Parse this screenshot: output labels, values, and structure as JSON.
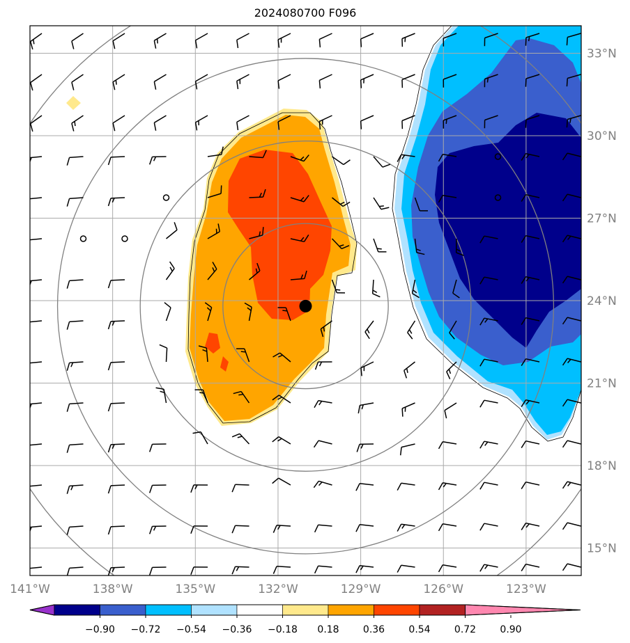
{
  "map": {
    "title": "2024080700 F096",
    "longitude_labels": [
      "141°W",
      "138°W",
      "135°W",
      "132°W",
      "129°W",
      "126°W",
      "123°W"
    ],
    "latitude_labels": [
      "33°N",
      "30°N",
      "27°N",
      "24°N",
      "21°N",
      "18°N",
      "15°N"
    ],
    "longitudes_deg": [
      -141,
      -138,
      -135,
      -132,
      -129,
      -126,
      -123
    ],
    "latitudes_deg": [
      33,
      30,
      27,
      24,
      21,
      18,
      15
    ],
    "extent": {
      "lon_min": -141,
      "lon_max": -121,
      "lat_min": 14,
      "lat_max": 34
    },
    "center_marker": {
      "lon": -131,
      "lat": 23.8
    },
    "range_rings_deg": [
      3,
      6,
      9,
      12
    ],
    "grid_color": "#aaaaaa",
    "ring_color": "#808080"
  },
  "colorbar": {
    "tick_labels": [
      "−0.90",
      "−0.72",
      "−0.54",
      "−0.36",
      "−0.18",
      "0.18",
      "0.36",
      "0.54",
      "0.72",
      "0.90"
    ],
    "colors": [
      "#9932cc",
      "#00008b",
      "#3a5fcd",
      "#00bfff",
      "#b0e2ff",
      "#ffffff",
      "#ffe98c",
      "#ffa500",
      "#ff4500",
      "#b22222",
      "#ff88b0"
    ]
  }
}
